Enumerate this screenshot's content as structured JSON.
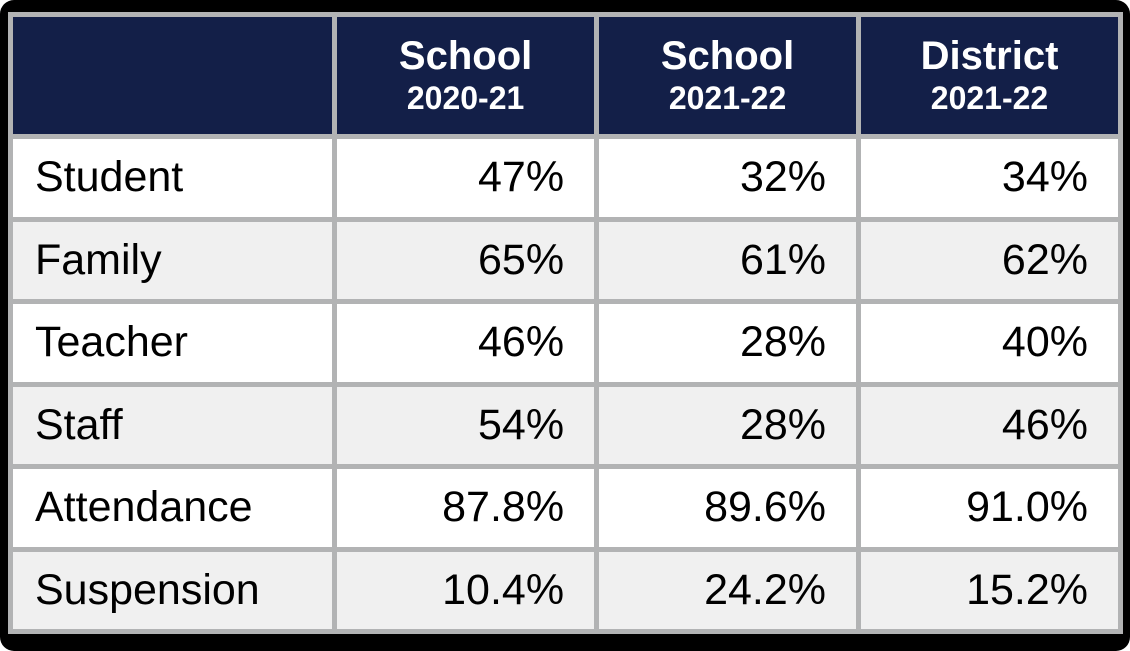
{
  "chart_data": {
    "type": "table",
    "columns": [
      {
        "title": "",
        "subtitle": ""
      },
      {
        "title": "School",
        "subtitle": "2020-21"
      },
      {
        "title": "School",
        "subtitle": "2021-22"
      },
      {
        "title": "District",
        "subtitle": "2021-22"
      }
    ],
    "rows": [
      {
        "label": "Student",
        "values": [
          "47%",
          "32%",
          "34%"
        ]
      },
      {
        "label": "Family",
        "values": [
          "65%",
          "61%",
          "62%"
        ]
      },
      {
        "label": "Teacher",
        "values": [
          "46%",
          "28%",
          "40%"
        ]
      },
      {
        "label": "Staff",
        "values": [
          "54%",
          "28%",
          "46%"
        ]
      },
      {
        "label": "Attendance",
        "values": [
          "87.8%",
          "89.6%",
          "91.0%"
        ]
      },
      {
        "label": "Suspension",
        "values": [
          "10.4%",
          "24.2%",
          "15.2%"
        ]
      }
    ]
  },
  "colors": {
    "frame": "#000000",
    "header_bg": "#131f48",
    "header_text": "#ffffff",
    "border": "#b2b3b4",
    "row_bg": "#ffffff",
    "row_alt_bg": "#f0f0f0",
    "body_text": "#000000"
  }
}
